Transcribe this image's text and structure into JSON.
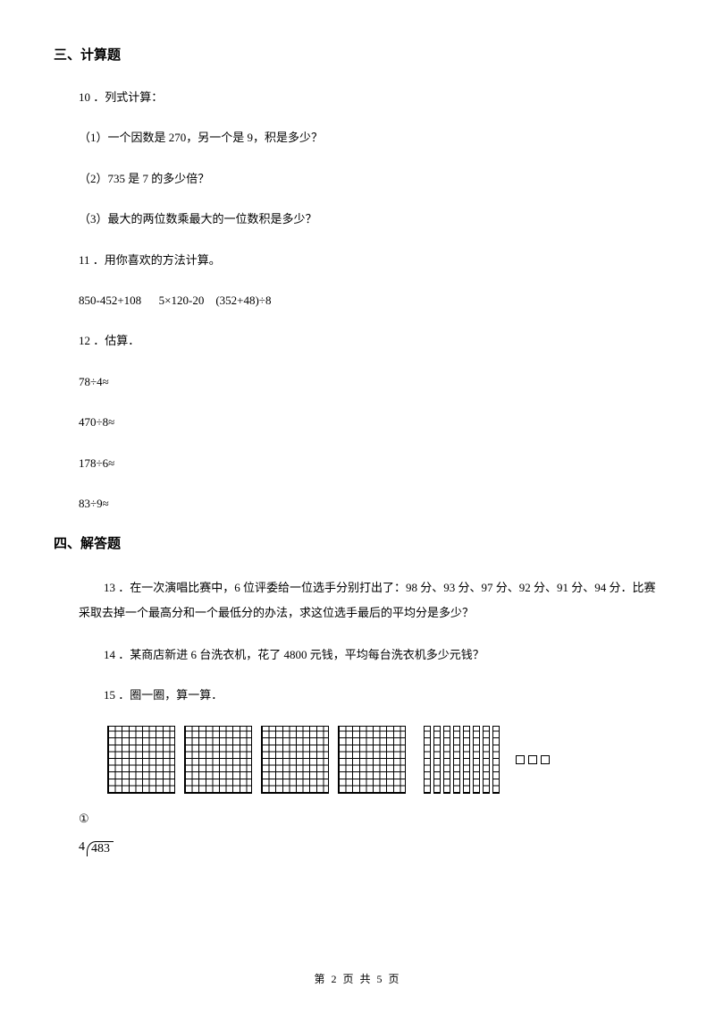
{
  "sections": {
    "s3": {
      "heading": "三、计算题",
      "q10": {
        "title": "10 ．列式计算：",
        "p1": "（1）一个因数是 270，另一个是 9，积是多少？",
        "p2": "（2）735 是 7 的多少倍？",
        "p3": "（3）最大的两位数乘最大的一位数积是多少？"
      },
      "q11": {
        "title": "11 ．用你喜欢的方法计算。",
        "expr": "850-452+108      5×120-20    (352+48)÷8"
      },
      "q12": {
        "title": "12 ．估算．",
        "e1": "78÷4≈",
        "e2": "470÷8≈",
        "e3": "178÷6≈",
        "e4": "83÷9≈"
      }
    },
    "s4": {
      "heading": "四、解答题",
      "q13": "13 ．在一次演唱比赛中，6 位评委给一位选手分别打出了：98 分、93 分、97 分、92 分、91 分、94 分．比赛采取去掉一个最高分和一个最低分的办法，求这位选手最后的平均分是多少？",
      "q14": "14 ．某商店新进 6 台洗衣机，花了 4800 元钱，平均每台洗衣机多少元钱？",
      "q15": {
        "title": "15 ．圈一圈，算一算．",
        "circled": "①",
        "divisor": "4",
        "dividend": "483"
      }
    }
  },
  "blocks": {
    "hundreds_count": 4,
    "tens_count": 8,
    "ones_count": 3
  },
  "footer": "第 2 页 共 5 页"
}
